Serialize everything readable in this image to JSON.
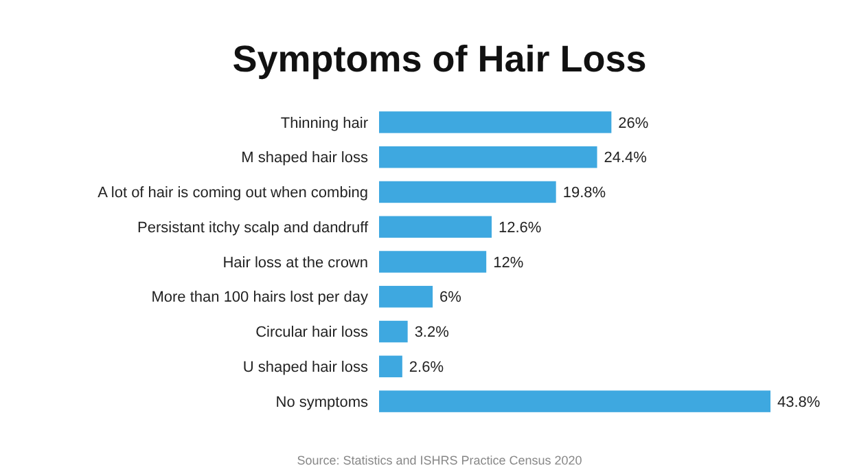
{
  "chart_data": {
    "type": "bar",
    "orientation": "horizontal",
    "title": "Symptoms of Hair Loss",
    "categories": [
      "Thinning hair",
      "M shaped hair loss",
      "A lot of hair is coming out when combing",
      "Persistant itchy scalp and dandruff",
      "Hair loss at the crown",
      "More than 100 hairs lost per day",
      "Circular hair loss",
      "U shaped hair loss",
      "No symptoms"
    ],
    "values": [
      26,
      24.4,
      19.8,
      12.6,
      12,
      6,
      3.2,
      2.6,
      43.8
    ],
    "color": "#3ea8e0",
    "value_labels": [
      "26%",
      "24.4%",
      "19.8%",
      "12.6%",
      "12%",
      "6%",
      "3.2%",
      "2.6%",
      "43.8%"
    ],
    "annotations": [
      "Source: Statistics and ISHRS Practice Census 2020"
    ]
  }
}
